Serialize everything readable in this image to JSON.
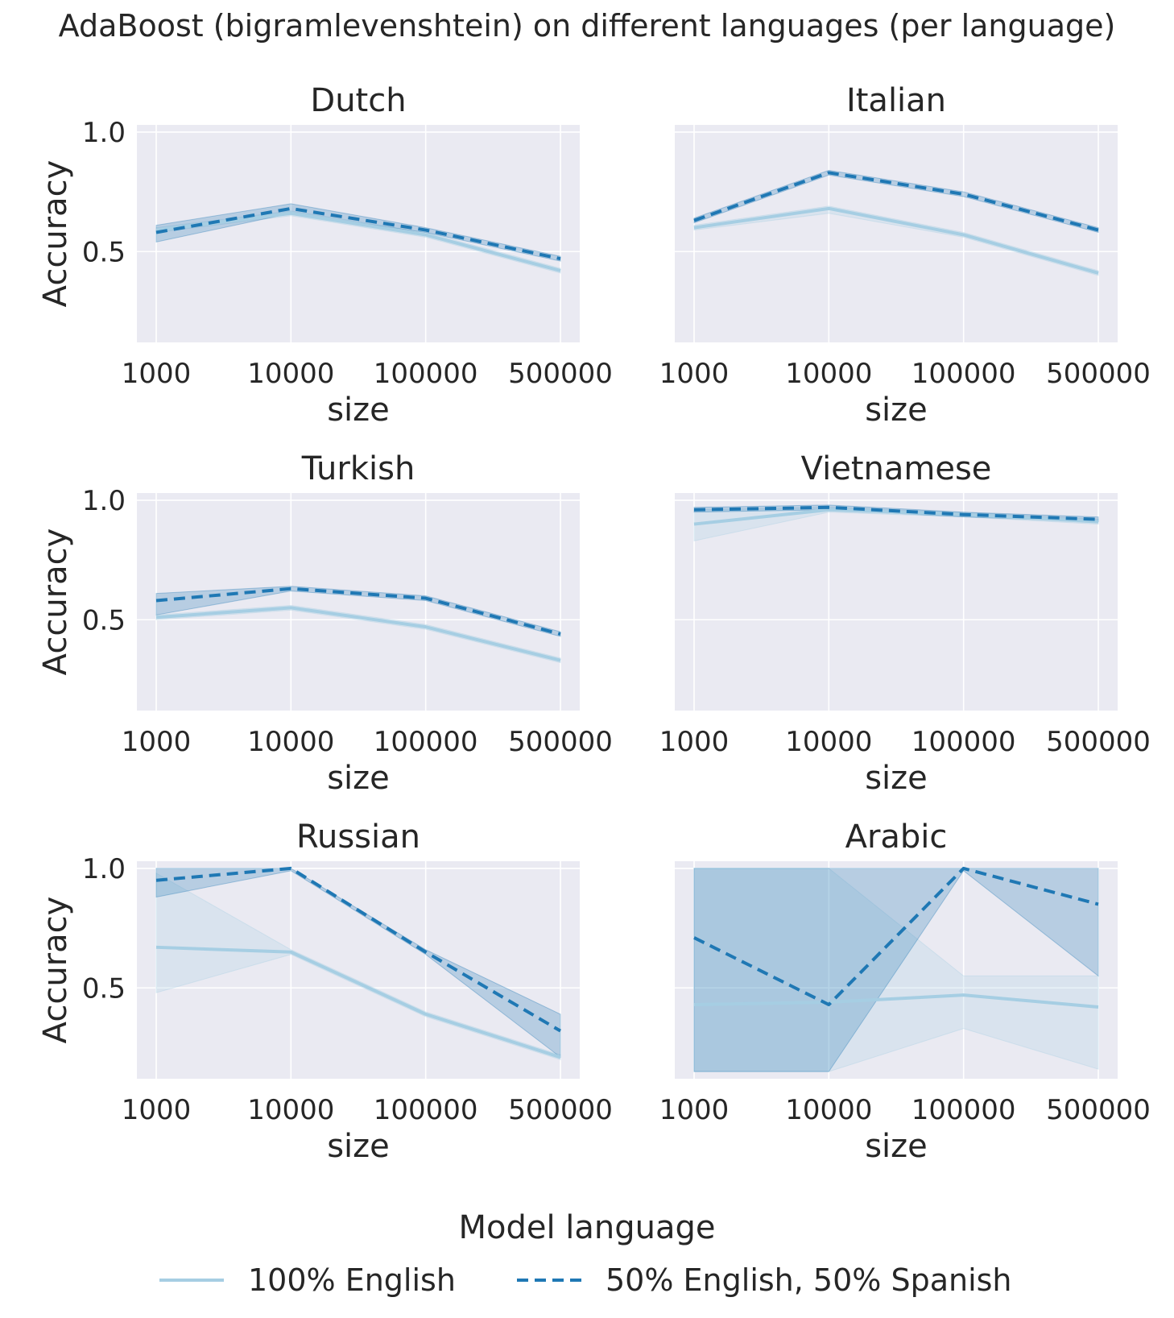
{
  "figure_title": "AdaBoost (bigramlevenshtein) on different languages (per language)",
  "legend": {
    "title": "Model language",
    "items": [
      {
        "label": "100% English",
        "style": "solid",
        "color": "#a6cee3"
      },
      {
        "label": "50% English, 50% Spanish",
        "style": "dashed",
        "color": "#1f78b4"
      }
    ]
  },
  "chart_data": [
    {
      "type": "line",
      "title": "Dutch",
      "categories": [
        "1000",
        "10000",
        "100000",
        "500000"
      ],
      "xlabel": "size",
      "ylabel": "Accuracy",
      "ylim": [
        0.12,
        1.03
      ],
      "yticks": [
        0.5,
        1.0
      ],
      "series": [
        {
          "name": "100% English",
          "values": [
            0.59,
            0.66,
            0.57,
            0.42
          ],
          "ci_low": [
            0.58,
            0.65,
            0.56,
            0.41
          ],
          "ci_high": [
            0.6,
            0.67,
            0.58,
            0.43
          ]
        },
        {
          "name": "50% English, 50% Spanish",
          "values": [
            0.58,
            0.68,
            0.59,
            0.47
          ],
          "ci_low": [
            0.54,
            0.66,
            0.58,
            0.46
          ],
          "ci_high": [
            0.61,
            0.7,
            0.6,
            0.48
          ]
        }
      ]
    },
    {
      "type": "line",
      "title": "Italian",
      "categories": [
        "1000",
        "10000",
        "100000",
        "500000"
      ],
      "xlabel": "size",
      "ylabel": "",
      "ylim": [
        0.12,
        1.03
      ],
      "yticks": [
        0.5,
        1.0
      ],
      "series": [
        {
          "name": "100% English",
          "values": [
            0.6,
            0.68,
            0.57,
            0.41
          ],
          "ci_low": [
            0.59,
            0.66,
            0.56,
            0.4
          ],
          "ci_high": [
            0.61,
            0.69,
            0.58,
            0.42
          ]
        },
        {
          "name": "50% English, 50% Spanish",
          "values": [
            0.63,
            0.83,
            0.74,
            0.59
          ],
          "ci_low": [
            0.62,
            0.82,
            0.73,
            0.58
          ],
          "ci_high": [
            0.64,
            0.84,
            0.75,
            0.6
          ]
        }
      ]
    },
    {
      "type": "line",
      "title": "Turkish",
      "categories": [
        "1000",
        "10000",
        "100000",
        "500000"
      ],
      "xlabel": "size",
      "ylabel": "Accuracy",
      "ylim": [
        0.12,
        1.03
      ],
      "yticks": [
        0.5,
        1.0
      ],
      "series": [
        {
          "name": "100% English",
          "values": [
            0.51,
            0.55,
            0.47,
            0.33
          ],
          "ci_low": [
            0.5,
            0.54,
            0.46,
            0.32
          ],
          "ci_high": [
            0.52,
            0.56,
            0.48,
            0.34
          ]
        },
        {
          "name": "50% English, 50% Spanish",
          "values": [
            0.58,
            0.63,
            0.59,
            0.44
          ],
          "ci_low": [
            0.52,
            0.62,
            0.58,
            0.43
          ],
          "ci_high": [
            0.61,
            0.64,
            0.6,
            0.45
          ]
        }
      ]
    },
    {
      "type": "line",
      "title": "Vietnamese",
      "categories": [
        "1000",
        "10000",
        "100000",
        "500000"
      ],
      "xlabel": "size",
      "ylabel": "",
      "ylim": [
        0.12,
        1.03
      ],
      "yticks": [
        0.5,
        1.0
      ],
      "series": [
        {
          "name": "100% English",
          "values": [
            0.9,
            0.96,
            0.94,
            0.91
          ],
          "ci_low": [
            0.83,
            0.95,
            0.93,
            0.9
          ],
          "ci_high": [
            0.96,
            0.97,
            0.95,
            0.92
          ]
        },
        {
          "name": "50% English, 50% Spanish",
          "values": [
            0.96,
            0.97,
            0.94,
            0.92
          ],
          "ci_low": [
            0.95,
            0.96,
            0.93,
            0.91
          ],
          "ci_high": [
            0.97,
            0.98,
            0.95,
            0.93
          ]
        }
      ]
    },
    {
      "type": "line",
      "title": "Russian",
      "categories": [
        "1000",
        "10000",
        "100000",
        "500000"
      ],
      "xlabel": "size",
      "ylabel": "Accuracy",
      "ylim": [
        0.12,
        1.03
      ],
      "yticks": [
        0.5,
        1.0
      ],
      "series": [
        {
          "name": "100% English",
          "values": [
            0.67,
            0.65,
            0.39,
            0.21
          ],
          "ci_low": [
            0.48,
            0.64,
            0.38,
            0.2
          ],
          "ci_high": [
            0.98,
            0.66,
            0.4,
            0.22
          ]
        },
        {
          "name": "50% English, 50% Spanish",
          "values": [
            0.95,
            1.0,
            0.65,
            0.32
          ],
          "ci_low": [
            0.88,
            0.99,
            0.64,
            0.21
          ],
          "ci_high": [
            1.0,
            1.0,
            0.66,
            0.39
          ]
        }
      ]
    },
    {
      "type": "line",
      "title": "Arabic",
      "categories": [
        "1000",
        "10000",
        "100000",
        "500000"
      ],
      "xlabel": "size",
      "ylabel": "",
      "ylim": [
        0.12,
        1.03
      ],
      "yticks": [
        0.5,
        1.0
      ],
      "series": [
        {
          "name": "100% English",
          "values": [
            0.43,
            0.44,
            0.47,
            0.42
          ],
          "ci_low": [
            0.15,
            0.15,
            0.33,
            0.16
          ],
          "ci_high": [
            1.0,
            1.0,
            0.55,
            0.55
          ]
        },
        {
          "name": "50% English, 50% Spanish",
          "values": [
            0.71,
            0.43,
            1.0,
            0.85
          ],
          "ci_low": [
            0.15,
            0.15,
            0.99,
            0.55
          ],
          "ci_high": [
            1.0,
            1.0,
            1.0,
            1.0
          ]
        }
      ]
    }
  ]
}
